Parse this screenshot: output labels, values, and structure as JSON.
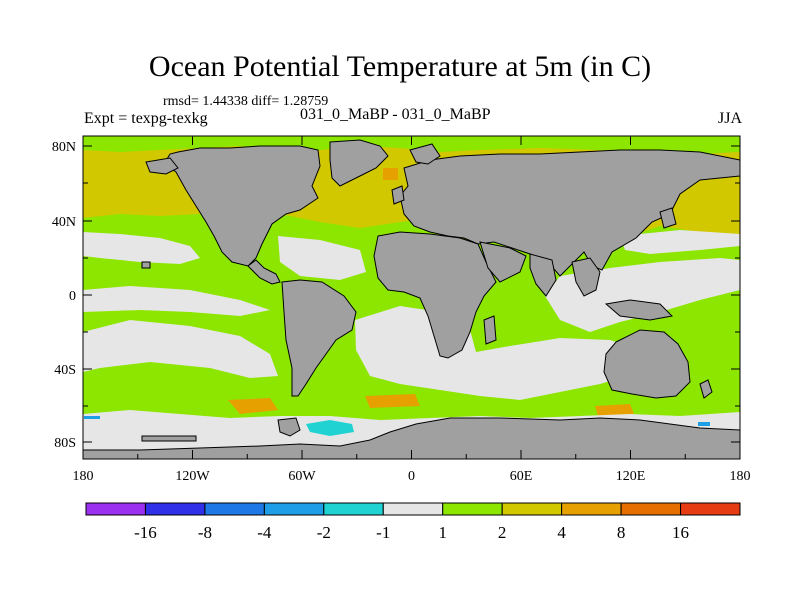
{
  "title": "Ocean Potential Temperature at 5m (in C)",
  "stats": "rmsd= 1.44338 diff= 1.28759",
  "experiment": "Expt = texpg-texkg",
  "experiment_names": "031_0_MaBP - 031_0_MaBP",
  "season": "JJA",
  "axes": {
    "x_ticks": [
      "180",
      "120W",
      "60W",
      "0",
      "60E",
      "120E",
      "180"
    ],
    "y_ticks": [
      "80N",
      "40N",
      "0",
      "40S",
      "80S"
    ]
  },
  "colorbar": {
    "labels": [
      "-16",
      "-8",
      "-4",
      "-2",
      "-1",
      "1",
      "2",
      "4",
      "8",
      "16"
    ],
    "colors": [
      "#9b30f0",
      "#3030e8",
      "#1e78e6",
      "#1e9ee6",
      "#20d2d2",
      "#e6e6e6",
      "#8ce600",
      "#d2c800",
      "#e6a000",
      "#e66e00",
      "#e63c14"
    ]
  },
  "colors": {
    "land": "#a0a0a0",
    "neutral": "#e6e6e6",
    "green": "#8ce600",
    "yellow": "#d2c800",
    "orange": "#e6a000",
    "cyan": "#20d2d2",
    "lightblue": "#1e9ee6"
  }
}
